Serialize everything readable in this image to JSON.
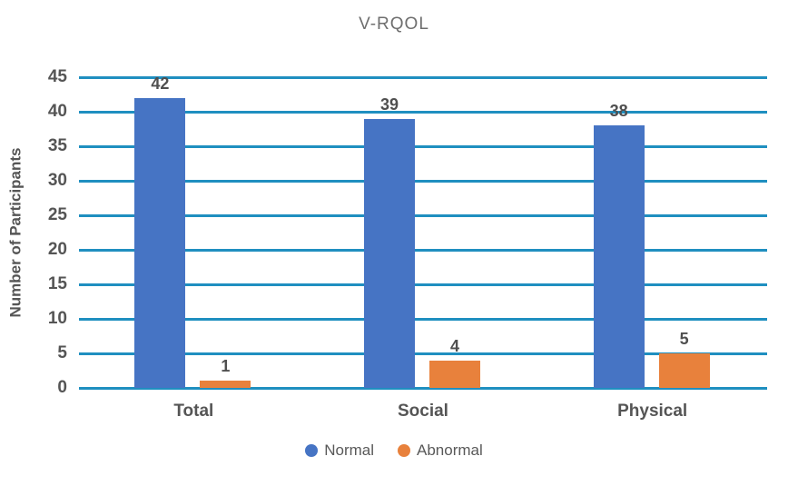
{
  "title": "V-RQOL",
  "chart_data": {
    "type": "bar",
    "categories": [
      "Total",
      "Social",
      "Physical"
    ],
    "series": [
      {
        "name": "Normal",
        "color": "#4674c4",
        "values": [
          42,
          39,
          38
        ]
      },
      {
        "name": "Abnormal",
        "color": "#e8813c",
        "values": [
          1,
          4,
          5
        ]
      }
    ],
    "title": "V-RQOL",
    "xlabel": "",
    "ylabel": "Number of Participants",
    "ylim": [
      0,
      45
    ],
    "ytick_step": 5,
    "ytick_labels": [
      "0",
      "5",
      "10",
      "15",
      "20",
      "25",
      "30",
      "35",
      "40",
      "45"
    ],
    "data_labels": [
      "42",
      "1",
      "39",
      "4",
      "38",
      "5"
    ],
    "grid": true,
    "gridline_color": "#1f8fc0",
    "legend_position": "bottom",
    "legend_labels": [
      "Normal",
      "Abnormal"
    ]
  }
}
